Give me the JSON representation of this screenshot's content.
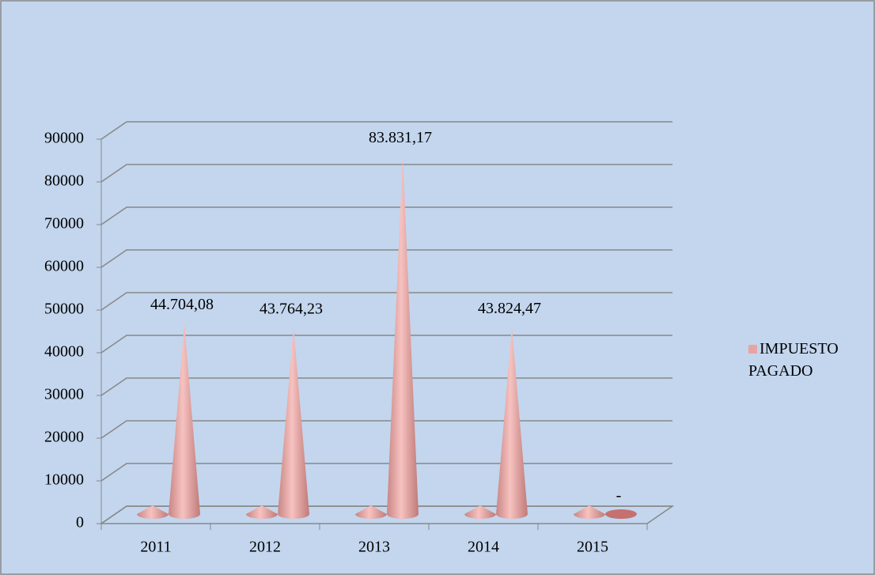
{
  "chart_data": {
    "type": "cone3d",
    "categories": [
      "2011",
      "2012",
      "2013",
      "2014",
      "2015"
    ],
    "series": [
      {
        "color": "#e8a4a2",
        "values": [
          2011,
          2012,
          2013,
          2014,
          2015
        ]
      },
      {
        "name": "IMPUESTO PAGADO",
        "color": "#e8a4a2",
        "values": [
          44704.08,
          43764.23,
          83831.17,
          43824.47,
          0
        ],
        "value_labels": [
          "44.704,08",
          "43.764,23",
          "83.831,17",
          "43.824,47",
          "-"
        ]
      }
    ],
    "ylim": [
      0,
      90000
    ],
    "yticks": [
      0,
      10000,
      20000,
      30000,
      40000,
      50000,
      60000,
      70000,
      80000,
      90000
    ],
    "grid": true,
    "legend": "right"
  }
}
